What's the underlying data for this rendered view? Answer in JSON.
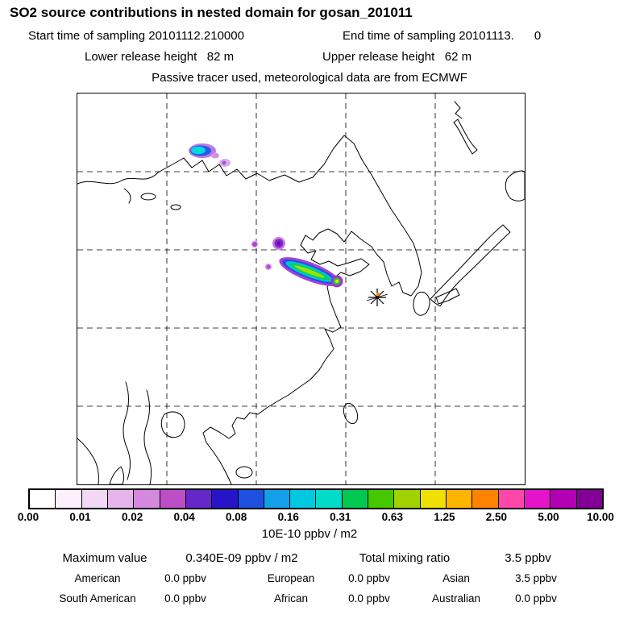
{
  "header": {
    "title": "SO2 source contributions in nested domain for gosan_201011",
    "line2_left": "Start time of sampling 20101112.210000",
    "line2_right": "End time of sampling 20101113.      0",
    "line3_left": "Lower release height   82 m",
    "line3_right": "Upper release height   62 m",
    "line4": "Passive tracer used, meteorological data are from ECMWF"
  },
  "colorbar": {
    "tick_labels": [
      "0.00",
      "0.01",
      "0.02",
      "0.04",
      "0.08",
      "0.16",
      "0.31",
      "0.63",
      "1.25",
      "2.50",
      "5.00",
      "10.00"
    ],
    "colors": [
      "#ffffff",
      "#fbf0fb",
      "#f2d8f4",
      "#e4b4ea",
      "#d488de",
      "#be4ec8",
      "#6428c8",
      "#2814c8",
      "#1e50e0",
      "#14a0e8",
      "#00c8e0",
      "#00dcc8",
      "#00c850",
      "#46c800",
      "#a0d200",
      "#f0e000",
      "#ffb400",
      "#ff8200",
      "#ff46aa",
      "#e614c8",
      "#b400b4",
      "#820096"
    ],
    "units_label": "10E-10 ppbv / m2"
  },
  "stats": {
    "max_label": "Maximum value",
    "max_value": "0.340E-09 ppbv / m2",
    "total_label": "Total mixing ratio",
    "total_value": "3.5 ppbv",
    "regions": [
      {
        "label": "American",
        "value": "0.0 ppbv"
      },
      {
        "label": "European",
        "value": "0.0 ppbv"
      },
      {
        "label": "Asian",
        "value": "3.5 ppbv"
      },
      {
        "label": "South American",
        "value": "0.0 ppbv"
      },
      {
        "label": "African",
        "value": "0.0 ppbv"
      },
      {
        "label": "Australian",
        "value": "0.0 ppbv"
      }
    ]
  },
  "chart_data": {
    "type": "heatmap",
    "title": "SO2 source contributions in nested domain for gosan_201011",
    "receptor": "gosan",
    "sampling": {
      "start": "20101112.210000",
      "end": "20101113.0"
    },
    "release_heights_m": {
      "lower": 82,
      "upper": 62
    },
    "meteorology": "ECMWF",
    "tracer": "Passive tracer",
    "colorbar_levels": [
      0.0,
      0.01,
      0.02,
      0.04,
      0.08,
      0.16,
      0.31,
      0.63,
      1.25,
      2.5,
      5.0,
      10.0
    ],
    "colorbar_units": "10E-10 ppbv / m2",
    "maximum_value": "0.340E-09 ppbv / m2",
    "total_mixing_ratio_ppbv": 3.5,
    "source_contributions_ppbv": {
      "American": 0.0,
      "European": 0.0,
      "Asian": 3.5,
      "South American": 0.0,
      "African": 0.0,
      "Australian": 0.0
    },
    "plume_features": [
      {
        "location": "upper-left quadrant blob (cyan/blue core, violet fringe)",
        "peak_level_range": "0.08-0.16"
      },
      {
        "location": "small violet spot right of upper-left blob",
        "peak_level_range": "0.01-0.02"
      },
      {
        "location": "two small purple/magenta spots, map center-west",
        "peak_level_range": "0.02-0.08"
      },
      {
        "location": "main elongated WNW-ESE plume ending near Shandong / Yellow Sea coast (green-yellow core, blue/purple fringe)",
        "peak_level_range": "0.31-1.25"
      },
      {
        "location": "black star receptor marker with orange dot, near Gosan / Jeju, southwest of Korean peninsula"
      }
    ],
    "map": {
      "region": "East Asia nested domain",
      "gridlines": "dashed, 4 vertical x 4 horizontal"
    }
  }
}
